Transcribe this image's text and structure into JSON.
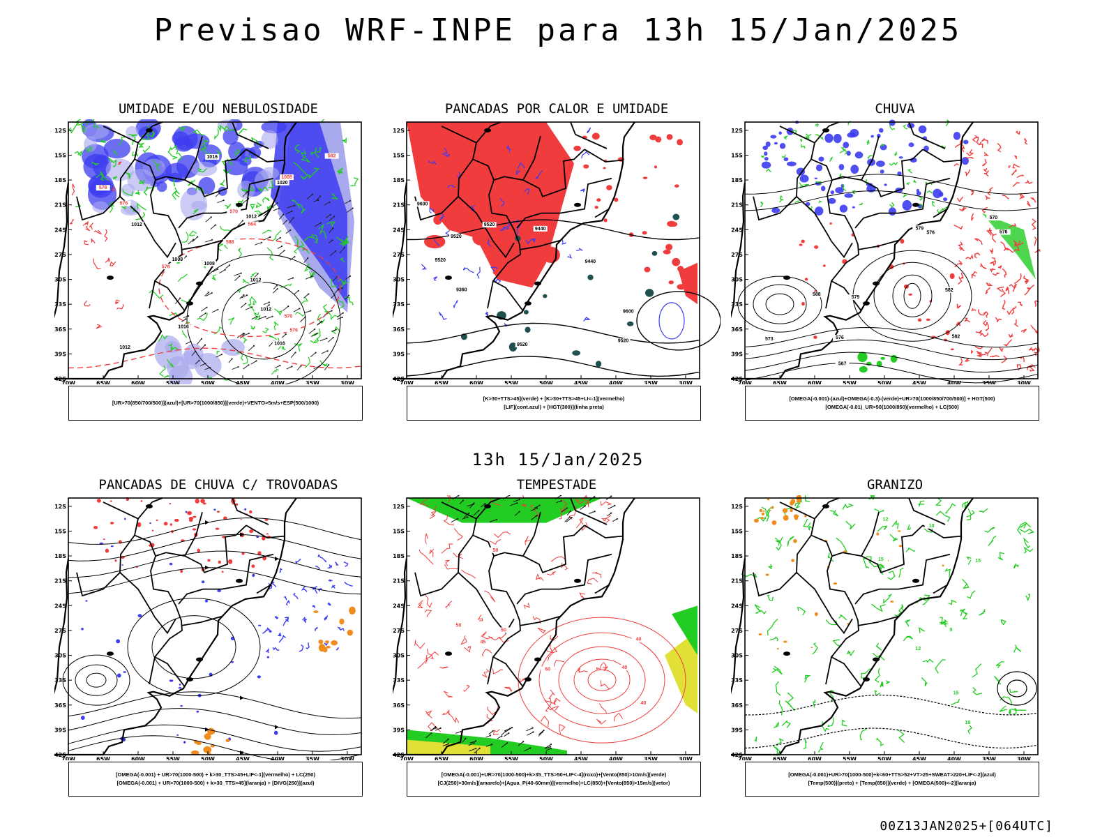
{
  "header": {
    "title": "Previsao WRF-INPE  para 13h 15/Jan/2025"
  },
  "middle_time": "13h 15/Jan/2025",
  "footer_code": "00Z13JAN2025+[064UTC]",
  "axes": {
    "lat_labels": [
      "12S",
      "15S",
      "18S",
      "21S",
      "24S",
      "27S",
      "30S",
      "33S",
      "36S",
      "39S",
      "42S"
    ],
    "lon_labels": [
      "70W",
      "65W",
      "60W",
      "55W",
      "50W",
      "45W",
      "40W",
      "35W",
      "30W"
    ]
  },
  "colors": {
    "humid_blue": "#3c3cf0",
    "light_blue": "#a9a9ee",
    "green": "#22cc22",
    "red": "#f03c3c",
    "dark_teal": "#1f4f4f",
    "orange": "#f08c1e",
    "yellow": "#e0e036"
  },
  "panels": [
    {
      "title": "UMIDADE E/OU NEBULOSIDADE",
      "legend": [
        "[UR>70(850/700/500)](azul)+[UR>70(1000/850)](verde)+VENTO>5m/s+ESP(500/1000)"
      ],
      "contour_labels": [
        "1012",
        "1012",
        "1012",
        "1012",
        "1012",
        "1008",
        "1008",
        "1016",
        "1020",
        "1016",
        "1016",
        "1008",
        "576",
        "576",
        "576",
        "570",
        "570",
        "576",
        "582",
        "588",
        "564"
      ]
    },
    {
      "title": "PANCADAS POR CALOR E UMIDADE",
      "legend": [
        "[K>30+TTS>45](verde) + [K>30+TTS>45+LI<-1](vermelho)",
        "[LIF](cont.azul) + [HGT(300)](linha preta)"
      ],
      "contour_labels": [
        "9600",
        "9600",
        "9520",
        "9520",
        "9520",
        "9520",
        "9520",
        "9440",
        "9440",
        "9360"
      ]
    },
    {
      "title": "CHUVA",
      "legend": [
        "[OMEGA(-0.001)-(azul)+OMEGA(-0.3)-(verde)+UR>70(1000/850/700/500)] + HGT(500)",
        "[OMEGA(-0.01)_UR>50(1000/850)(vermelho) + LC(500)"
      ],
      "contour_labels": [
        "588",
        "582",
        "582",
        "579",
        "579",
        "576",
        "576",
        "573",
        "570",
        "567",
        "576"
      ]
    },
    {
      "title": "PANCADAS DE CHUVA C/ TROVOADAS",
      "legend": [
        "[OMEGA(-0.001) + UR>70(1000-500) + k>30_TTS>45+LIF<-1](vermelho) + LC(250)",
        "[OMEGA(-0.001) + UR>70(1000-500) + k>30_TTS>45](laranja) + [DIVG(250)](azul)"
      ],
      "contour_labels": []
    },
    {
      "title": "TEMPESTADE",
      "legend": [
        "[OMEGA(-0.001)+UR>70(1000-500)+k>35_TTS>50+LIF<-4](roxo)+[Vento(850)>10m/s](verde)",
        "[CJ(250)>30m/s](amarelo)+[Agua_P(40-60mm)](vermelho)+LC(850)+[Vento(850)>15m/s](vetor)"
      ],
      "contour_labels": [
        "40",
        "50",
        "40",
        "50",
        "60",
        "40",
        "45",
        "50"
      ]
    },
    {
      "title": "GRANIZO",
      "legend": [
        "[OMEGA(-0.001)+UR>70(1000-500)+k<60+TTS>52+VT>25+SWEAT>220+LIF<-2](azul)",
        "[Temp(500)](preto) + [Temp(850)](verde) + [OMEGA(500)<-2](laranja)"
      ],
      "contour_labels": [
        "12",
        "15",
        "15",
        "18",
        "18",
        "12",
        "9",
        "15"
      ]
    }
  ]
}
